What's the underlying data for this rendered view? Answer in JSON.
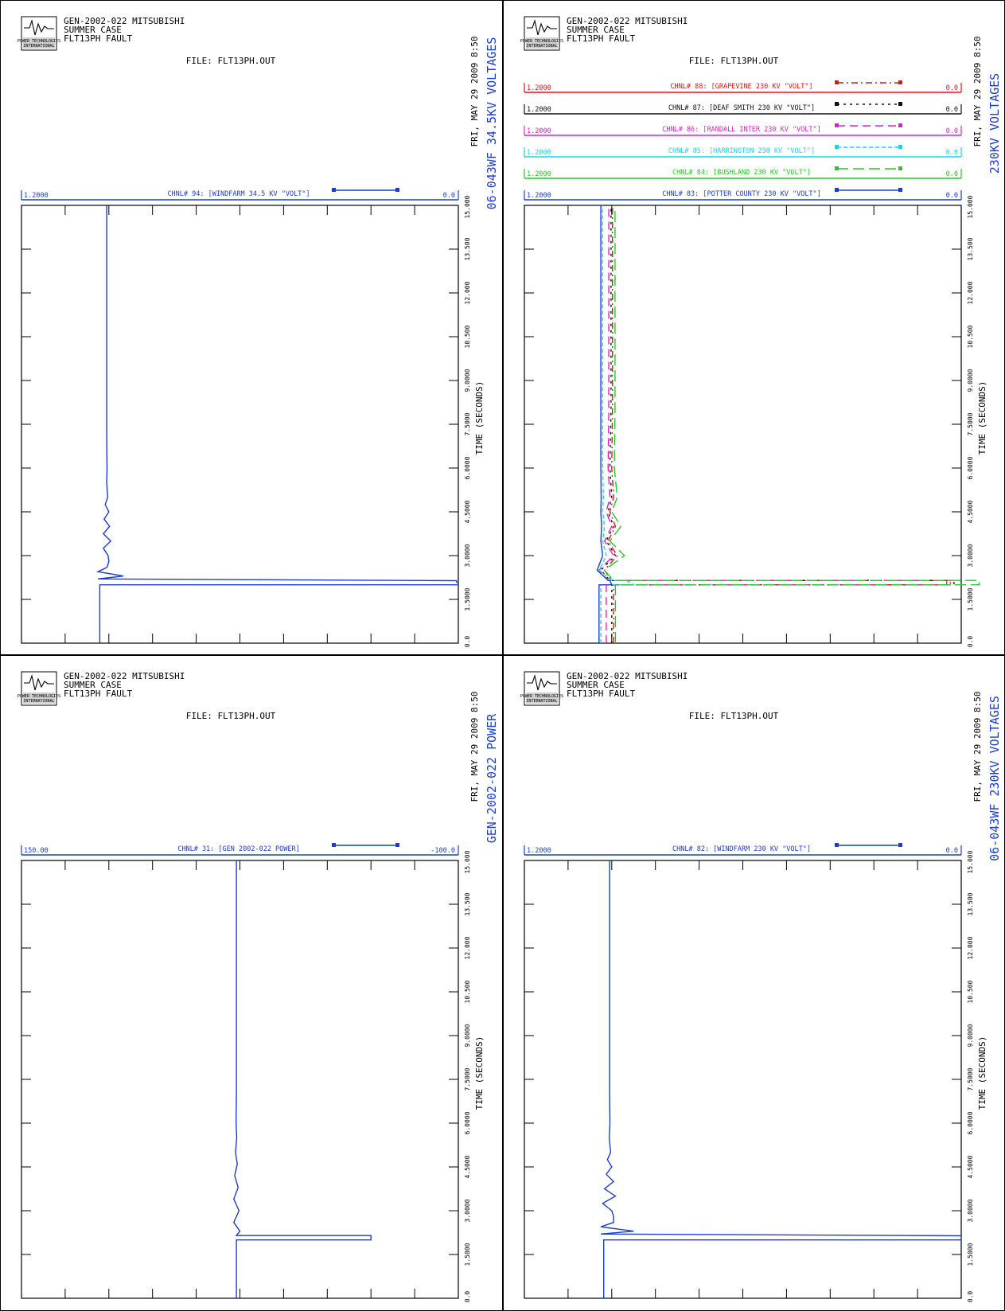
{
  "page": {
    "header": {
      "study": "GEN-2002-022 MITSUBISHI",
      "case": "SUMMER CASE",
      "fault": "FLT13PH FAULT",
      "file": "FILE: FLT13PH.OUT",
      "date": "FRI, MAY 29 2009   8:50",
      "logo_text": [
        "POWER TECHNOLOGIES",
        "INTERNATIONAL"
      ]
    },
    "x_axis_label": "TIME (SECONDS)",
    "x_tick_labels": [
      "0.0",
      "1.5000",
      "3.0000",
      "4.5000",
      "6.0000",
      "7.5000",
      "9.0000",
      "10.500",
      "12.000",
      "13.500",
      "15.000"
    ]
  },
  "chart_data": [
    {
      "type": "line",
      "plot_title": "06-043WF 34.5KV VOLTAGES",
      "xlim": [
        0,
        15
      ],
      "series": [
        {
          "name": "CHNL# 94: [WINDFARM 34.5 KV \"VOLT\"]",
          "ymax_label": "1.2000",
          "ymin_label": "0.0",
          "ylim": [
            0,
            1.2
          ],
          "color": "#1a3dd6",
          "dash": "",
          "x": [
            0,
            1.4,
            2.0,
            2.0,
            2.05,
            2.1,
            2.14,
            2.2,
            2.3,
            2.45,
            2.6,
            2.8,
            3.0,
            3.25,
            3.5,
            3.75,
            4.0,
            4.25,
            4.5,
            4.75,
            5.0,
            5.5,
            6.0,
            7.0,
            8.0,
            10.0,
            12.0,
            15.0
          ],
          "y": [
            0.985,
            0.985,
            0.985,
            0.0,
            0.0,
            0.005,
            0.005,
            0.99,
            0.92,
            0.99,
            0.965,
            0.96,
            0.962,
            0.975,
            0.955,
            0.975,
            0.958,
            0.973,
            0.96,
            0.97,
            0.963,
            0.966,
            0.965,
            0.966,
            0.966,
            0.966,
            0.966,
            0.966
          ]
        }
      ]
    },
    {
      "type": "line",
      "plot_title": "230KV VOLTAGES",
      "xlim": [
        0,
        15
      ],
      "series": [
        {
          "name": "CHNL# 88: [GRAPEVINE 230 KV \"VOLT\"]",
          "ymax_label": "1.2000",
          "ymin_label": "0.0",
          "ylim": [
            0,
            1.2
          ],
          "color": "#ee1111",
          "dash": "8 4 2 4",
          "x": [
            0,
            2.0,
            2.0,
            2.15,
            2.15,
            2.5,
            3.0,
            3.5,
            4.0,
            4.5,
            5.0,
            6.0,
            8.0,
            15.0
          ],
          "y": [
            0.955,
            0.955,
            0.03,
            0.03,
            0.96,
            0.98,
            0.945,
            0.97,
            0.95,
            0.965,
            0.955,
            0.96,
            0.958,
            0.958
          ]
        },
        {
          "name": "CHNL# 87: [DEAF SMITH 230 KV \"VOLT\"]",
          "ymax_label": "1.2000",
          "ymin_label": "0.0",
          "ylim": [
            0,
            1.2
          ],
          "color": "#111111",
          "dash": "3 5",
          "x": [
            0,
            2.0,
            2.0,
            2.15,
            2.15,
            2.5,
            3.0,
            3.5,
            4.0,
            4.5,
            5.0,
            6.0,
            8.0,
            15.0
          ],
          "y": [
            0.96,
            0.96,
            0.02,
            0.02,
            0.965,
            0.99,
            0.95,
            0.975,
            0.955,
            0.97,
            0.96,
            0.965,
            0.962,
            0.962
          ]
        },
        {
          "name": "CHNL# 86: [RANDALL INTER 230 KV \"VOLT\"]",
          "ymax_label": "1.2000",
          "ymin_label": "0.0",
          "ylim": [
            0,
            1.2
          ],
          "color": "#e81ad0",
          "dash": "10 6",
          "x": [
            0,
            2.0,
            2.0,
            2.15,
            2.15,
            2.5,
            3.0,
            3.5,
            4.0,
            4.5,
            5.0,
            6.0,
            8.0,
            15.0
          ],
          "y": [
            0.975,
            0.975,
            0.04,
            0.04,
            0.97,
            0.995,
            0.955,
            0.98,
            0.96,
            0.975,
            0.965,
            0.97,
            0.968,
            0.968
          ]
        },
        {
          "name": "CHNL# 85: [HARRINGTON 230 KV \"VOLT\"]",
          "ymax_label": "1.2000",
          "ymin_label": "0.0",
          "ylim": [
            0,
            1.2
          ],
          "color": "#11d9e8",
          "dash": "5 3",
          "x": [
            0,
            2.0,
            2.0,
            2.15,
            2.15,
            2.5,
            3.0,
            3.5,
            4.0,
            4.5,
            5.0,
            6.0,
            8.0,
            15.0
          ],
          "y": [
            0.99,
            0.99,
            0.9,
            0.92,
            0.96,
            0.995,
            0.975,
            0.985,
            0.98,
            0.985,
            0.983,
            0.985,
            0.985,
            0.985
          ]
        },
        {
          "name": "CHNL# 84: [BUSHLAND 230 KV \"VOLT\"]",
          "ymax_label": "1.2000",
          "ymin_label": "0.0",
          "ylim": [
            0,
            1.2
          ],
          "color": "#22cc22",
          "dash": "14 6",
          "x": [
            0,
            2.0,
            2.0,
            2.15,
            2.15,
            2.5,
            3.0,
            3.5,
            4.0,
            4.5,
            5.0,
            6.0,
            8.0,
            15.0
          ],
          "y": [
            0.95,
            0.95,
            -0.05,
            -0.05,
            0.955,
            0.98,
            0.925,
            0.965,
            0.935,
            0.96,
            0.945,
            0.953,
            0.951,
            0.951
          ]
        },
        {
          "name": "CHNL# 83: [POTTER COUNTY 230 KV \"VOLT\"]",
          "ymax_label": "1.2000",
          "ymin_label": "0.0",
          "ylim": [
            0,
            1.2
          ],
          "color": "#1a3dd6",
          "dash": "",
          "x": [
            0,
            2.0,
            2.0,
            2.15,
            2.15,
            2.5,
            3.0,
            3.5,
            4.0,
            4.5,
            5.0,
            6.0,
            8.0,
            15.0
          ],
          "y": [
            0.995,
            0.995,
            0.96,
            0.965,
            0.97,
            1.0,
            0.985,
            0.99,
            0.988,
            0.99,
            0.989,
            0.99,
            0.99,
            0.99
          ]
        }
      ]
    },
    {
      "type": "line",
      "plot_title": "GEN-2002-022 POWER",
      "xlim": [
        0,
        15
      ],
      "series": [
        {
          "name": "CHNL# 31: [GEN 2002-022 POWER]",
          "ymax_label": "150.00",
          "ymin_label": "-100.0",
          "ylim": [
            -100,
            150
          ],
          "color": "#1a3dd6",
          "dash": "",
          "x": [
            0,
            2.0,
            2.0,
            2.15,
            2.15,
            2.3,
            2.6,
            3.0,
            3.4,
            3.8,
            4.2,
            4.6,
            5.0,
            5.5,
            6.0,
            7.0,
            8.0,
            15.0
          ],
          "y": [
            27,
            27,
            -50,
            -50,
            27,
            25,
            28.5,
            25.5,
            28.5,
            26,
            28,
            26.5,
            27.5,
            26.8,
            27.2,
            27,
            27,
            27
          ]
        }
      ]
    },
    {
      "type": "line",
      "plot_title": "06-043WF 230KV VOLTAGES",
      "xlim": [
        0,
        15
      ],
      "series": [
        {
          "name": "CHNL# 82: [WINDFARM 230 KV \"VOLT\"]",
          "ymax_label": "1.2000",
          "ymin_label": "0.0",
          "ylim": [
            0,
            1.2
          ],
          "color": "#1a3dd6",
          "dash": "",
          "x": [
            0,
            1.4,
            2.0,
            2.0,
            2.05,
            2.1,
            2.14,
            2.2,
            2.3,
            2.45,
            2.6,
            2.8,
            3.0,
            3.25,
            3.5,
            3.75,
            4.0,
            4.25,
            4.5,
            4.75,
            5.0,
            5.5,
            6.0,
            7.0,
            8.0,
            10.0,
            12.0,
            15.0
          ],
          "y": [
            0.982,
            0.982,
            0.982,
            0.0,
            0.0,
            0.0,
            0.0,
            0.99,
            0.9,
            0.99,
            0.955,
            0.955,
            0.96,
            0.985,
            0.95,
            0.98,
            0.955,
            0.975,
            0.96,
            0.972,
            0.963,
            0.967,
            0.965,
            0.966,
            0.966,
            0.966,
            0.966,
            0.966
          ]
        }
      ]
    }
  ]
}
